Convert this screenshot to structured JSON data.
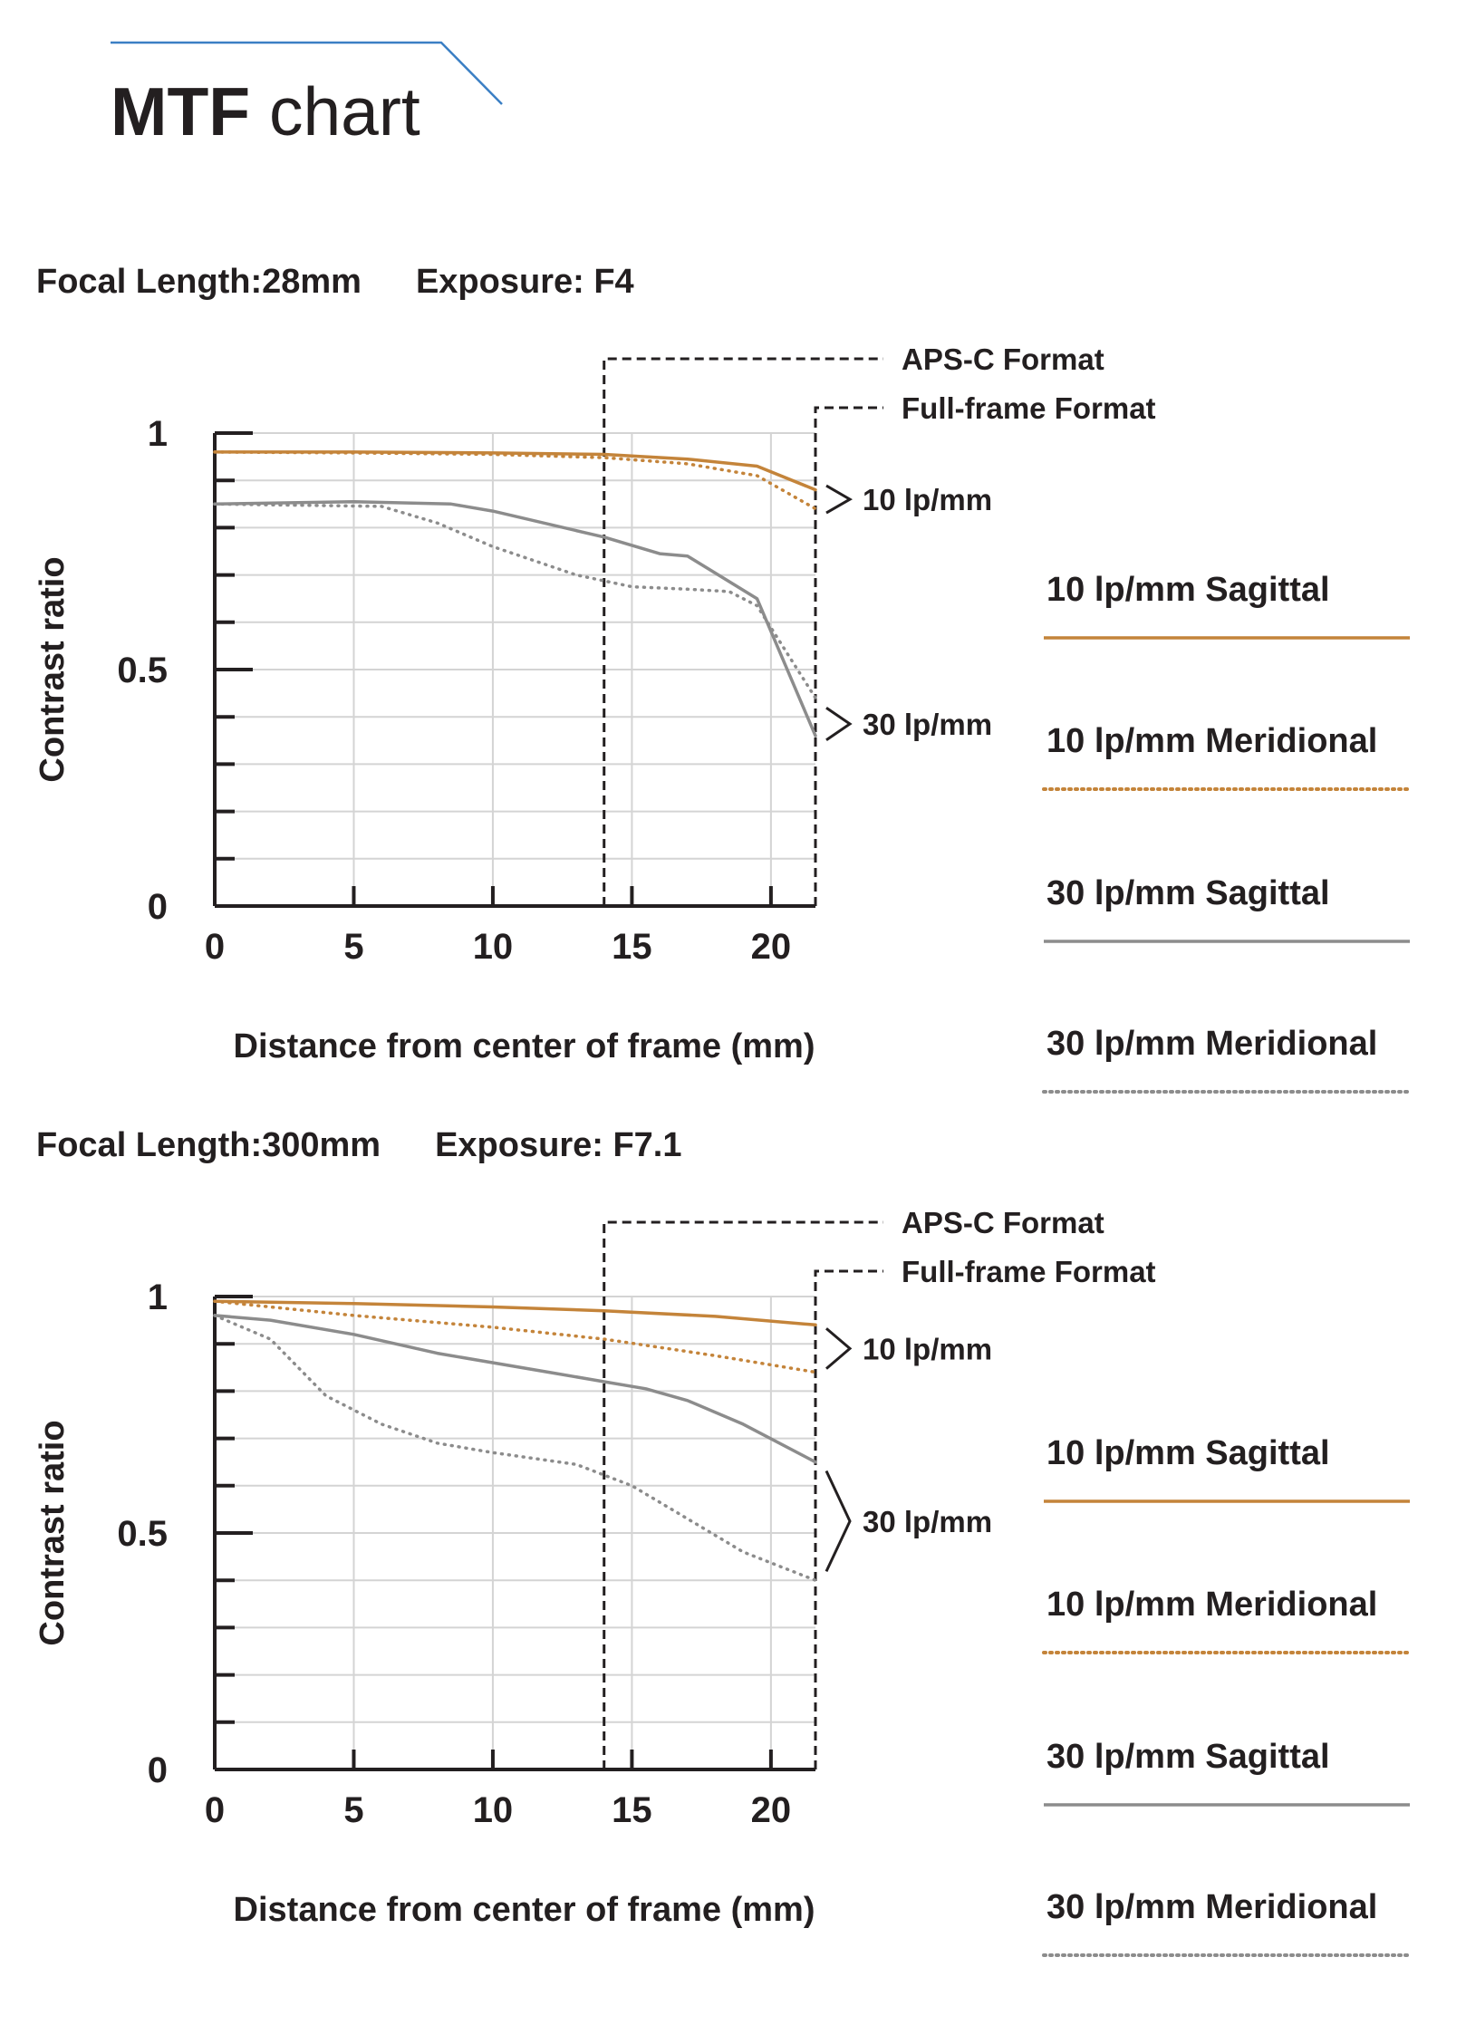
{
  "page": {
    "title_bold": "MTF",
    "title_rest": " chart"
  },
  "legend": [
    {
      "label": "10 lp/mm Sagittal",
      "color": "#c4843a",
      "dash": "solid"
    },
    {
      "label": "10 lp/mm Meridional",
      "color": "#c4843a",
      "dash": "dotted"
    },
    {
      "label": "30 lp/mm Sagittal",
      "color": "#8c8c8c",
      "dash": "solid"
    },
    {
      "label": "30 lp/mm Meridional",
      "color": "#8c8c8c",
      "dash": "dotted"
    }
  ],
  "chart_data": [
    {
      "type": "line",
      "caption_focal": "Focal Length:28mm",
      "caption_exposure": "Exposure: F4",
      "xlabel": "Distance from center of frame (mm)",
      "ylabel": "Contrast ratio",
      "xlim": [
        0,
        21.6
      ],
      "ylim": [
        0,
        1
      ],
      "x_ticks": [
        "0",
        "5",
        "10",
        "15",
        "20"
      ],
      "y_ticks": [
        "0",
        "0.5",
        "1"
      ],
      "grid": true,
      "aps_c_limit": 14,
      "full_frame_limit": 21.6,
      "aps_c_label": "APS-C Format",
      "full_frame_label": "Full-frame Format",
      "group_labels": [
        "10 lp/mm",
        "30 lp/mm"
      ],
      "series": [
        {
          "name": "10 lp/mm Sagittal",
          "color": "#c4843a",
          "dash": "solid",
          "points": [
            [
              0,
              0.96
            ],
            [
              5,
              0.96
            ],
            [
              10,
              0.958
            ],
            [
              14,
              0.955
            ],
            [
              17,
              0.945
            ],
            [
              19.5,
              0.93
            ],
            [
              21.6,
              0.88
            ]
          ]
        },
        {
          "name": "10 lp/mm Meridional",
          "color": "#c4843a",
          "dash": "dotted",
          "points": [
            [
              0,
              0.96
            ],
            [
              5,
              0.958
            ],
            [
              10,
              0.955
            ],
            [
              14,
              0.948
            ],
            [
              17,
              0.935
            ],
            [
              19.5,
              0.91
            ],
            [
              21.6,
              0.84
            ]
          ]
        },
        {
          "name": "30 lp/mm Sagittal",
          "color": "#8c8c8c",
          "dash": "solid",
          "points": [
            [
              0,
              0.85
            ],
            [
              5,
              0.855
            ],
            [
              8.5,
              0.85
            ],
            [
              10,
              0.835
            ],
            [
              14,
              0.78
            ],
            [
              16,
              0.745
            ],
            [
              17,
              0.74
            ],
            [
              19.5,
              0.65
            ],
            [
              21.6,
              0.36
            ]
          ]
        },
        {
          "name": "30 lp/mm Meridional",
          "color": "#8c8c8c",
          "dash": "dotted",
          "points": [
            [
              0,
              0.85
            ],
            [
              6,
              0.845
            ],
            [
              8,
              0.81
            ],
            [
              10,
              0.76
            ],
            [
              13,
              0.7
            ],
            [
              15,
              0.675
            ],
            [
              17,
              0.67
            ],
            [
              18.5,
              0.665
            ],
            [
              19.5,
              0.635
            ],
            [
              21.6,
              0.44
            ]
          ]
        }
      ]
    },
    {
      "type": "line",
      "caption_focal": "Focal Length:300mm",
      "caption_exposure": "Exposure: F7.1",
      "xlabel": "Distance from center of frame (mm)",
      "ylabel": "Contrast ratio",
      "xlim": [
        0,
        21.6
      ],
      "ylim": [
        0,
        1
      ],
      "x_ticks": [
        "0",
        "5",
        "10",
        "15",
        "20"
      ],
      "y_ticks": [
        "0",
        "0.5",
        "1"
      ],
      "grid": true,
      "aps_c_limit": 14,
      "full_frame_limit": 21.6,
      "aps_c_label": "APS-C Format",
      "full_frame_label": "Full-frame Format",
      "group_labels": [
        "10 lp/mm",
        "30 lp/mm"
      ],
      "series": [
        {
          "name": "10 lp/mm Sagittal",
          "color": "#c4843a",
          "dash": "solid",
          "points": [
            [
              0,
              0.99
            ],
            [
              5,
              0.985
            ],
            [
              10,
              0.978
            ],
            [
              14,
              0.97
            ],
            [
              18,
              0.958
            ],
            [
              21.6,
              0.94
            ]
          ]
        },
        {
          "name": "10 lp/mm Meridional",
          "color": "#c4843a",
          "dash": "dotted",
          "points": [
            [
              0,
              0.99
            ],
            [
              5,
              0.96
            ],
            [
              10,
              0.935
            ],
            [
              14,
              0.91
            ],
            [
              18,
              0.875
            ],
            [
              21.6,
              0.84
            ]
          ]
        },
        {
          "name": "30 lp/mm Sagittal",
          "color": "#8c8c8c",
          "dash": "solid",
          "points": [
            [
              0,
              0.96
            ],
            [
              2,
              0.95
            ],
            [
              5,
              0.92
            ],
            [
              8,
              0.88
            ],
            [
              12,
              0.84
            ],
            [
              14,
              0.82
            ],
            [
              15.5,
              0.805
            ],
            [
              17,
              0.78
            ],
            [
              19,
              0.73
            ],
            [
              21.6,
              0.65
            ]
          ]
        },
        {
          "name": "30 lp/mm Meridional",
          "color": "#8c8c8c",
          "dash": "dotted",
          "points": [
            [
              0,
              0.96
            ],
            [
              2,
              0.91
            ],
            [
              4,
              0.79
            ],
            [
              6,
              0.73
            ],
            [
              8,
              0.69
            ],
            [
              10,
              0.67
            ],
            [
              13,
              0.645
            ],
            [
              15,
              0.6
            ],
            [
              17,
              0.53
            ],
            [
              19,
              0.46
            ],
            [
              21.6,
              0.4
            ]
          ]
        }
      ]
    }
  ]
}
